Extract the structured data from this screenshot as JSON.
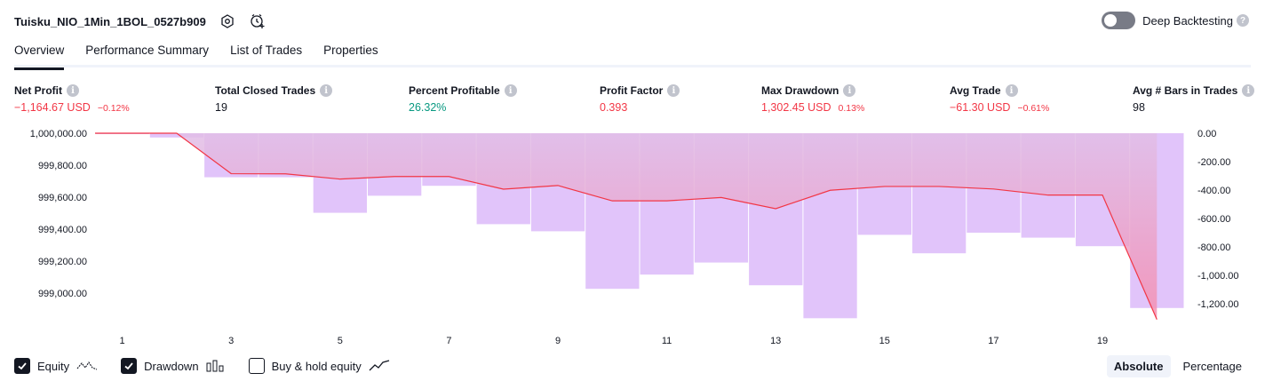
{
  "strategy": {
    "title": "Tuisku_NIO_1Min_1BOL_0527b909"
  },
  "deep_backtesting": {
    "label": "Deep Backtesting",
    "enabled": false,
    "help": "?"
  },
  "tabs": [
    {
      "label": "Overview",
      "active": true
    },
    {
      "label": "Performance Summary",
      "active": false
    },
    {
      "label": "List of Trades",
      "active": false
    },
    {
      "label": "Properties",
      "active": false
    }
  ],
  "metrics": [
    {
      "label": "Net Profit",
      "value": "−1,164.67 USD",
      "sub": "−0.12%",
      "color": "#f23645"
    },
    {
      "label": "Total Closed Trades",
      "value": "19",
      "sub": "",
      "color": "#131722"
    },
    {
      "label": "Percent Profitable",
      "value": "26.32%",
      "sub": "",
      "color": "#089981"
    },
    {
      "label": "Profit Factor",
      "value": "0.393",
      "sub": "",
      "color": "#f23645"
    },
    {
      "label": "Max Drawdown",
      "value": "1,302.45 USD",
      "sub": "0.13%",
      "color": "#f23645"
    },
    {
      "label": "Avg Trade",
      "value": "−61.30 USD",
      "sub": "−0.61%",
      "color": "#f23645"
    },
    {
      "label": "Avg # Bars in Trades",
      "value": "98",
      "sub": "",
      "color": "#131722"
    }
  ],
  "chart_data": {
    "type": "line",
    "left_axis": {
      "ticks": [
        "1,000,000.00",
        "999,800.00",
        "999,600.00",
        "999,400.00",
        "999,200.00",
        "999,000.00"
      ],
      "ylim": [
        998880,
        1000000
      ]
    },
    "right_axis": {
      "ticks": [
        "0.00",
        "-200.00",
        "-400.00",
        "-600.00",
        "-800.00",
        "-1,000.00",
        "-1,200.00"
      ],
      "ylim": [
        -1316,
        0
      ]
    },
    "x_ticks": [
      "1",
      "3",
      "5",
      "7",
      "9",
      "11",
      "13",
      "15",
      "17",
      "19"
    ],
    "trades": [
      1,
      2,
      3,
      4,
      5,
      6,
      7,
      8,
      9,
      10,
      11,
      12,
      13,
      14,
      15,
      16,
      17,
      18,
      19,
      20
    ],
    "series": [
      {
        "kind": "equity",
        "color": "#f23645",
        "values": [
          1000000,
          1000000,
          999747,
          999746,
          999713,
          999729,
          999729,
          999650,
          999673,
          999577,
          999577,
          999598,
          999528,
          999643,
          999667,
          999667,
          999651,
          999613,
          999613,
          998835
        ]
      },
      {
        "kind": "drawdown",
        "color": "#ce93d8",
        "values": [
          -5,
          -30,
          -310,
          -310,
          -560,
          -440,
          -370,
          -640,
          -690,
          -1095,
          -995,
          -910,
          -1070,
          -1302,
          -715,
          -845,
          -700,
          -735,
          -795,
          -1230
        ]
      }
    ],
    "legend": [
      {
        "label": "Equity",
        "checked": true,
        "icon": "equity-line-icon"
      },
      {
        "label": "Drawdown",
        "checked": true,
        "icon": "drawdown-bars-icon"
      },
      {
        "label": "Buy & hold equity",
        "checked": false,
        "icon": "buy-hold-line-icon"
      }
    ]
  },
  "mode": [
    {
      "label": "Absolute",
      "active": true
    },
    {
      "label": "Percentage",
      "active": false
    }
  ]
}
